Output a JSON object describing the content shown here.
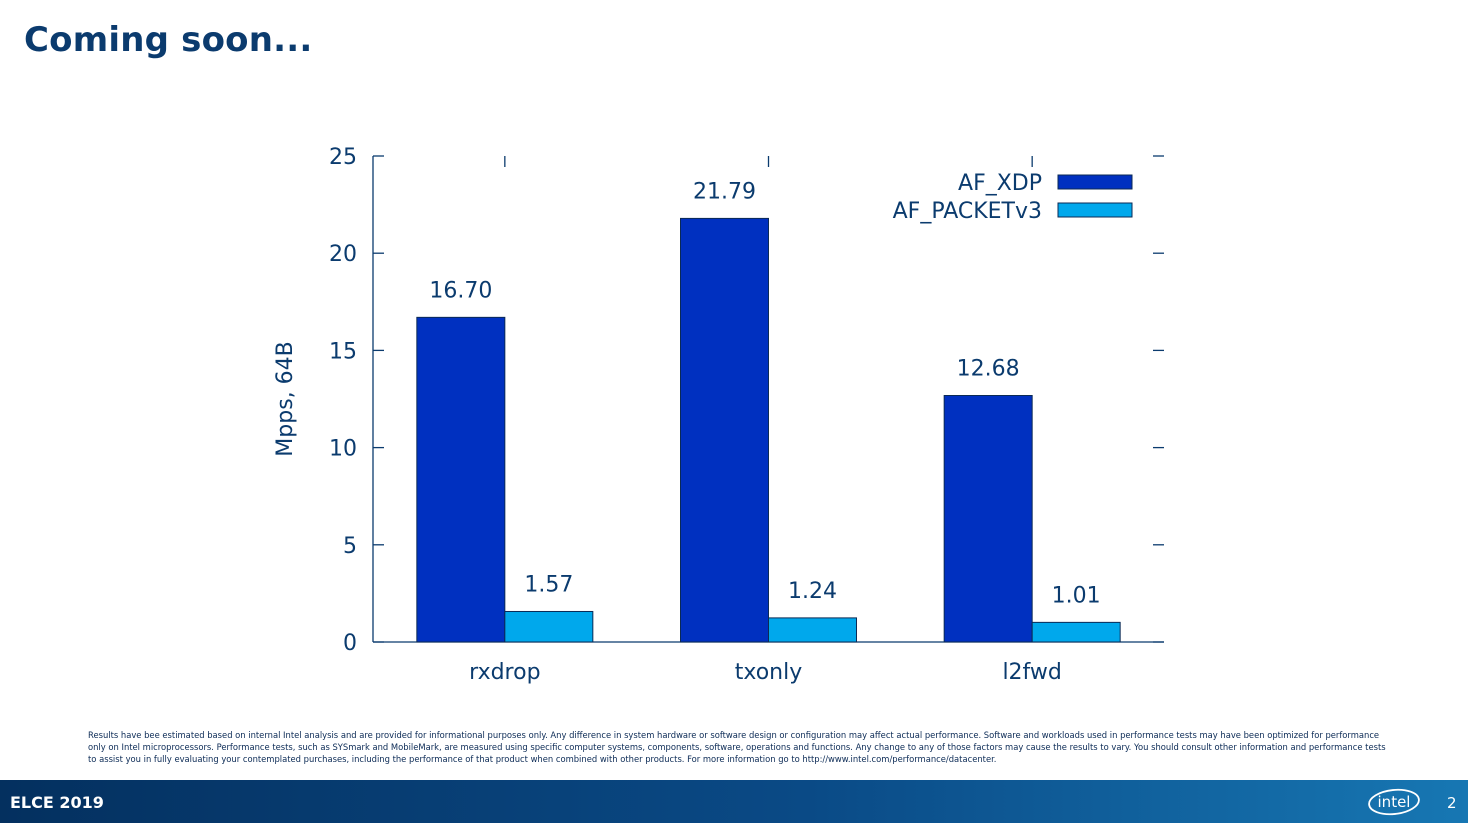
{
  "slide": {
    "title": "Coming soon...",
    "disclaimer": "Results have bee estimated based on internal Intel analysis and are provided for informational purposes only. Any difference in system hardware or software design or configuration may affect actual performance. Software and workloads used in performance tests may have been optimized for performance only on Intel microprocessors. Performance tests, such as SYSmark and MobileMark, are measured using specific computer systems, components, software, operations and functions. Any change to any of those factors may cause the results to vary. You should consult other information and performance tests to assist you in fully evaluating your contemplated purchases, including the performance of that product when combined with other products. For more information go to http://www.intel.com/performance/datacenter."
  },
  "footer": {
    "event": "ELCE 2019",
    "logo_text": "intel",
    "page_number": "2"
  },
  "colors": {
    "title": "#0b3b6e",
    "axis": "#0b3b6e",
    "af_xdp": "#0030c0",
    "af_packetv3": "#00a8ec"
  },
  "chart_data": {
    "type": "bar",
    "categories": [
      "rxdrop",
      "txonly",
      "l2fwd"
    ],
    "series": [
      {
        "name": "AF_XDP",
        "values": [
          16.7,
          21.79,
          12.68
        ],
        "labels": [
          "16.70",
          "21.79",
          "12.68"
        ]
      },
      {
        "name": "AF_PACKETv3",
        "values": [
          1.57,
          1.24,
          1.01
        ],
        "labels": [
          "1.57",
          "1.24",
          "1.01"
        ]
      }
    ],
    "ylabel": "Mpps, 64B",
    "xlabel": "",
    "ylim": [
      0,
      25
    ],
    "yticks": [
      0,
      5,
      10,
      15,
      20,
      25
    ],
    "grid": false,
    "legend": "top-right"
  }
}
